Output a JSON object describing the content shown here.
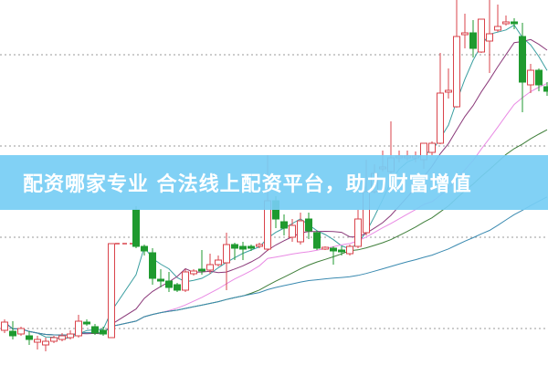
{
  "banner": {
    "text": "配资哪家专业 合法线上配资平台，助力财富增值"
  },
  "chart_data": {
    "type": "candlestick",
    "title": "",
    "xlabel": "",
    "ylabel": "",
    "ylim": [
      0,
      40
    ],
    "grid": true,
    "grid_levels": [
      4,
      14,
      24,
      34
    ],
    "colors": {
      "up": "#d9434b",
      "down": "#1f9a2f",
      "grid": "#999999",
      "banner": "#76cdf4"
    },
    "candle_format": [
      "open",
      "close",
      "high",
      "low"
    ],
    "candles": [
      [
        3.8,
        4.7,
        5.0,
        3.5
      ],
      [
        3.7,
        3.2,
        4.8,
        2.8
      ],
      [
        3.4,
        4.0,
        4.2,
        3.2
      ],
      [
        3.2,
        2.8,
        3.7,
        2.2
      ],
      [
        2.5,
        2.8,
        3.2,
        1.7
      ],
      [
        2.2,
        2.6,
        3.0,
        1.5
      ],
      [
        2.6,
        3.0,
        3.2,
        2.4
      ],
      [
        2.8,
        3.2,
        3.5,
        2.6
      ],
      [
        3.0,
        3.4,
        3.8,
        2.8
      ],
      [
        3.2,
        4.8,
        5.5,
        3.0
      ],
      [
        4.7,
        4.5,
        5.0,
        4.3
      ],
      [
        4.2,
        3.5,
        4.5,
        3.3
      ],
      [
        3.8,
        3.4,
        4.2,
        3.2
      ],
      [
        3.0,
        13.3,
        13.3,
        3.0
      ],
      null,
      null,
      [
        17.0,
        13.0,
        17.4,
        12.8
      ],
      [
        13.0,
        12.5,
        13.2,
        12.0
      ],
      [
        12.3,
        9.5,
        12.8,
        8.8
      ],
      [
        9.4,
        9.2,
        10.5,
        8.5
      ],
      [
        9.2,
        8.5,
        10.2,
        8.0
      ],
      [
        8.8,
        8.2,
        9.0,
        8.0
      ],
      [
        8.2,
        10.2,
        10.5,
        8.0
      ],
      [
        10.0,
        10.3,
        10.5,
        9.8
      ],
      [
        10.5,
        10.3,
        12.6,
        9.9
      ],
      [
        10.4,
        11.0,
        12.2,
        10.0
      ],
      [
        11.0,
        11.5,
        12.0,
        10.8
      ],
      [
        11.2,
        13.2,
        14.5,
        8.2
      ],
      [
        13.2,
        12.8,
        13.4,
        11.5
      ],
      [
        13.0,
        12.7,
        13.5,
        11.5
      ],
      [
        13.0,
        12.8,
        13.2,
        12.5
      ],
      [
        13.0,
        13.2,
        13.4,
        12.8
      ],
      [
        12.7,
        18.0,
        23.0,
        12.5
      ],
      [
        18.0,
        16.0,
        18.5,
        15.0
      ],
      [
        15.7,
        15.0,
        16.5,
        14.2
      ],
      [
        14.0,
        15.3,
        16.0,
        13.5
      ],
      [
        13.5,
        15.8,
        16.7,
        13.2
      ],
      [
        16.0,
        14.7,
        16.7,
        13.8
      ],
      [
        14.5,
        12.8,
        14.7,
        12.6
      ],
      [
        12.7,
        12.9,
        13.0,
        12.6
      ],
      [
        12.8,
        12.5,
        13.0,
        11.0
      ],
      [
        12.6,
        12.4,
        13.0,
        12.0
      ],
      [
        12.2,
        13.0,
        13.2,
        12.0
      ],
      [
        13.0,
        16.0,
        17.0,
        12.8
      ],
      [
        14.5,
        19.0,
        22.5,
        14.2
      ],
      [
        19.0,
        21.0,
        22.0,
        18.8
      ],
      [
        21.5,
        21.7,
        23.5,
        21.2
      ],
      [
        21.2,
        22.7,
        26.7,
        21.0
      ],
      [
        22.7,
        22.9,
        23.5,
        22.2
      ],
      [
        22.7,
        22.9,
        23.5,
        22.4
      ],
      [
        22.7,
        22.9,
        23.4,
        22.2
      ],
      [
        22.5,
        24.3,
        24.3,
        21.5
      ],
      [
        23.3,
        24.3,
        24.5,
        23.0
      ],
      [
        24.3,
        29.8,
        34.2,
        24.2
      ],
      [
        29.9,
        30.1,
        32.5,
        29.2
      ],
      [
        28.3,
        36.0,
        40.0,
        28.2
      ],
      [
        36.2,
        36.4,
        38.5,
        34.7
      ],
      [
        36.4,
        34.7,
        37.8,
        33.7
      ],
      [
        34.3,
        37.9,
        37.9,
        34.2
      ],
      [
        35.5,
        36.3,
        40.0,
        32.0
      ],
      [
        36.7,
        37.1,
        39.5,
        36.5
      ],
      [
        37.4,
        37.6,
        38.3,
        37.2
      ],
      [
        37.6,
        37.4,
        38.0,
        36.8
      ],
      [
        36.0,
        31.0,
        37.5,
        27.7
      ],
      [
        30.7,
        32.3,
        33.0,
        29.8
      ],
      [
        32.3,
        30.7,
        32.5,
        30.0
      ],
      [
        30.5,
        30.0,
        31.0,
        29.5
      ]
    ],
    "moving_averages": [
      {
        "period": 5,
        "color": "#3a9ea0"
      },
      {
        "period": 10,
        "color": "#8b3a7a"
      },
      {
        "period": 20,
        "color": "#e98ae4"
      },
      {
        "period": 30,
        "color": "#3f7f3a"
      },
      {
        "period": 60,
        "color": "#3a8ab0"
      }
    ]
  }
}
